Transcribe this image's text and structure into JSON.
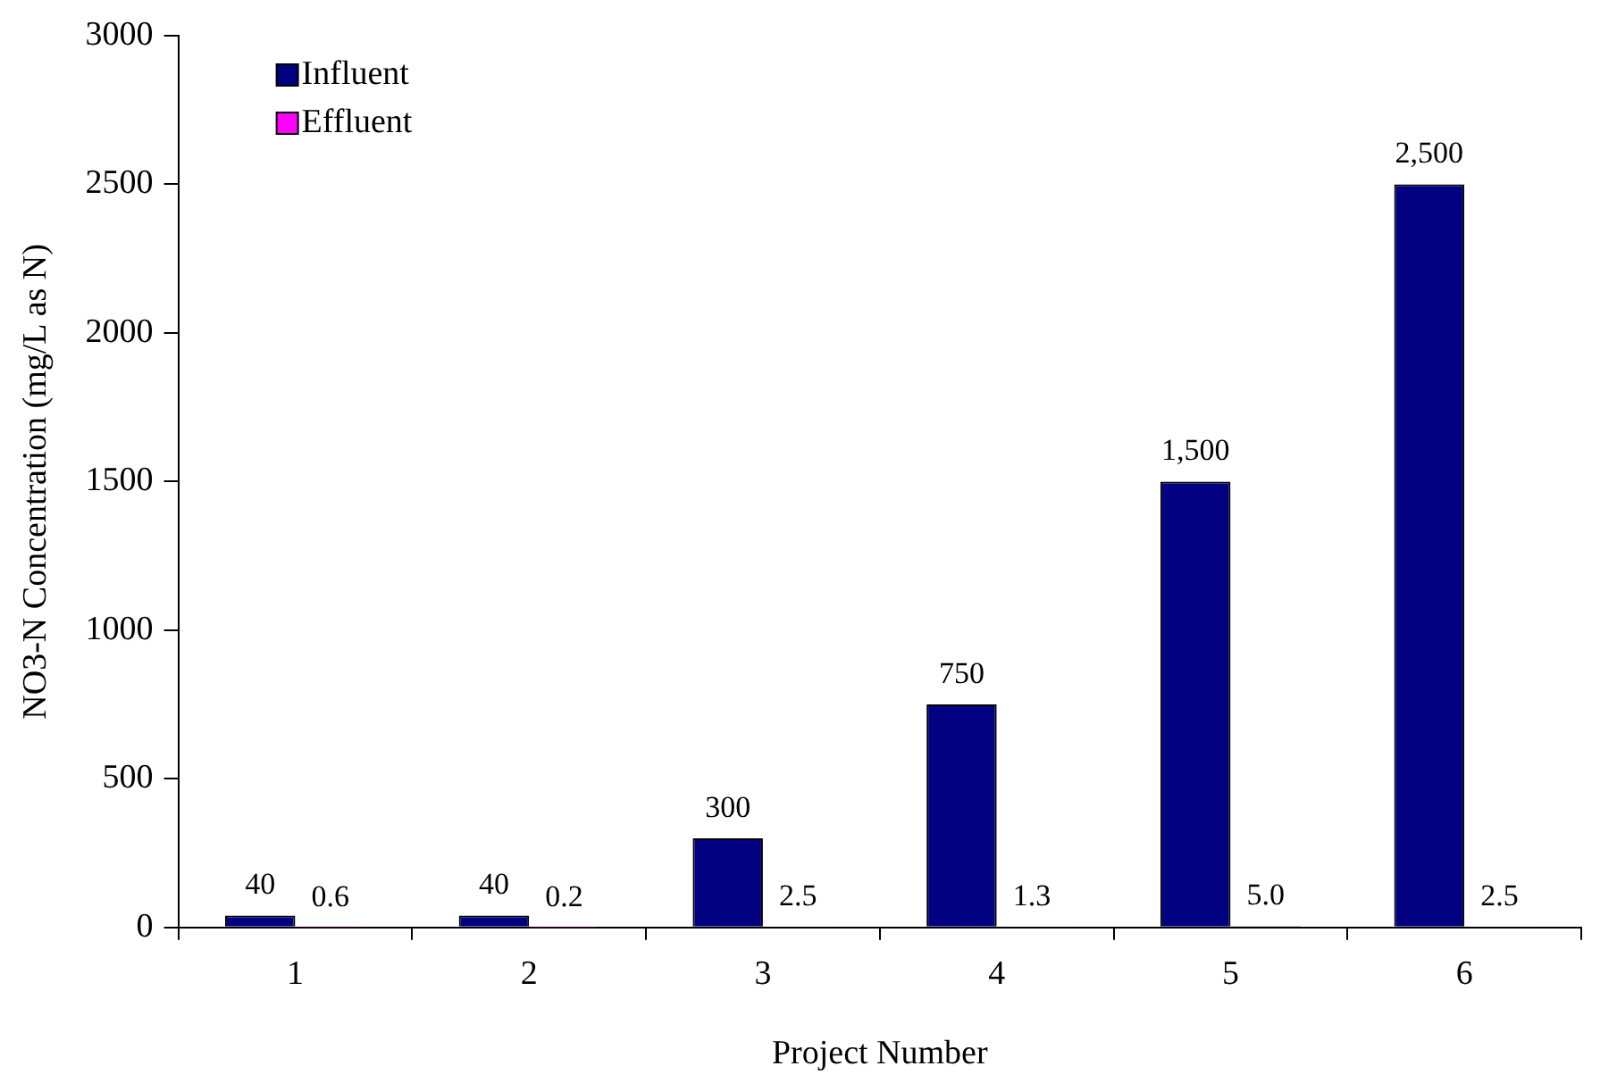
{
  "chart_data": {
    "type": "bar",
    "xlabel": "Project Number",
    "ylabel": "NO3-N Concentration (mg/L as N)",
    "categories": [
      "1",
      "2",
      "3",
      "4",
      "5",
      "6"
    ],
    "series": [
      {
        "name": "Influent",
        "color": "#000080",
        "values": [
          40,
          40,
          300,
          750,
          1500,
          2500
        ],
        "value_labels": [
          "40",
          "40",
          "300",
          "750",
          "1,500",
          "2,500"
        ]
      },
      {
        "name": "Effluent",
        "color": "#ff00ff",
        "values": [
          0.6,
          0.2,
          2.5,
          1.3,
          5.0,
          2.5
        ],
        "value_labels": [
          "0.6",
          "0.2",
          "2.5",
          "1.3",
          "5.0",
          "2.5"
        ]
      }
    ],
    "ylim": [
      0,
      3000
    ],
    "yticks": [
      0,
      500,
      1000,
      1500,
      2000,
      2500,
      3000
    ],
    "grid": false,
    "legend": "top left"
  }
}
